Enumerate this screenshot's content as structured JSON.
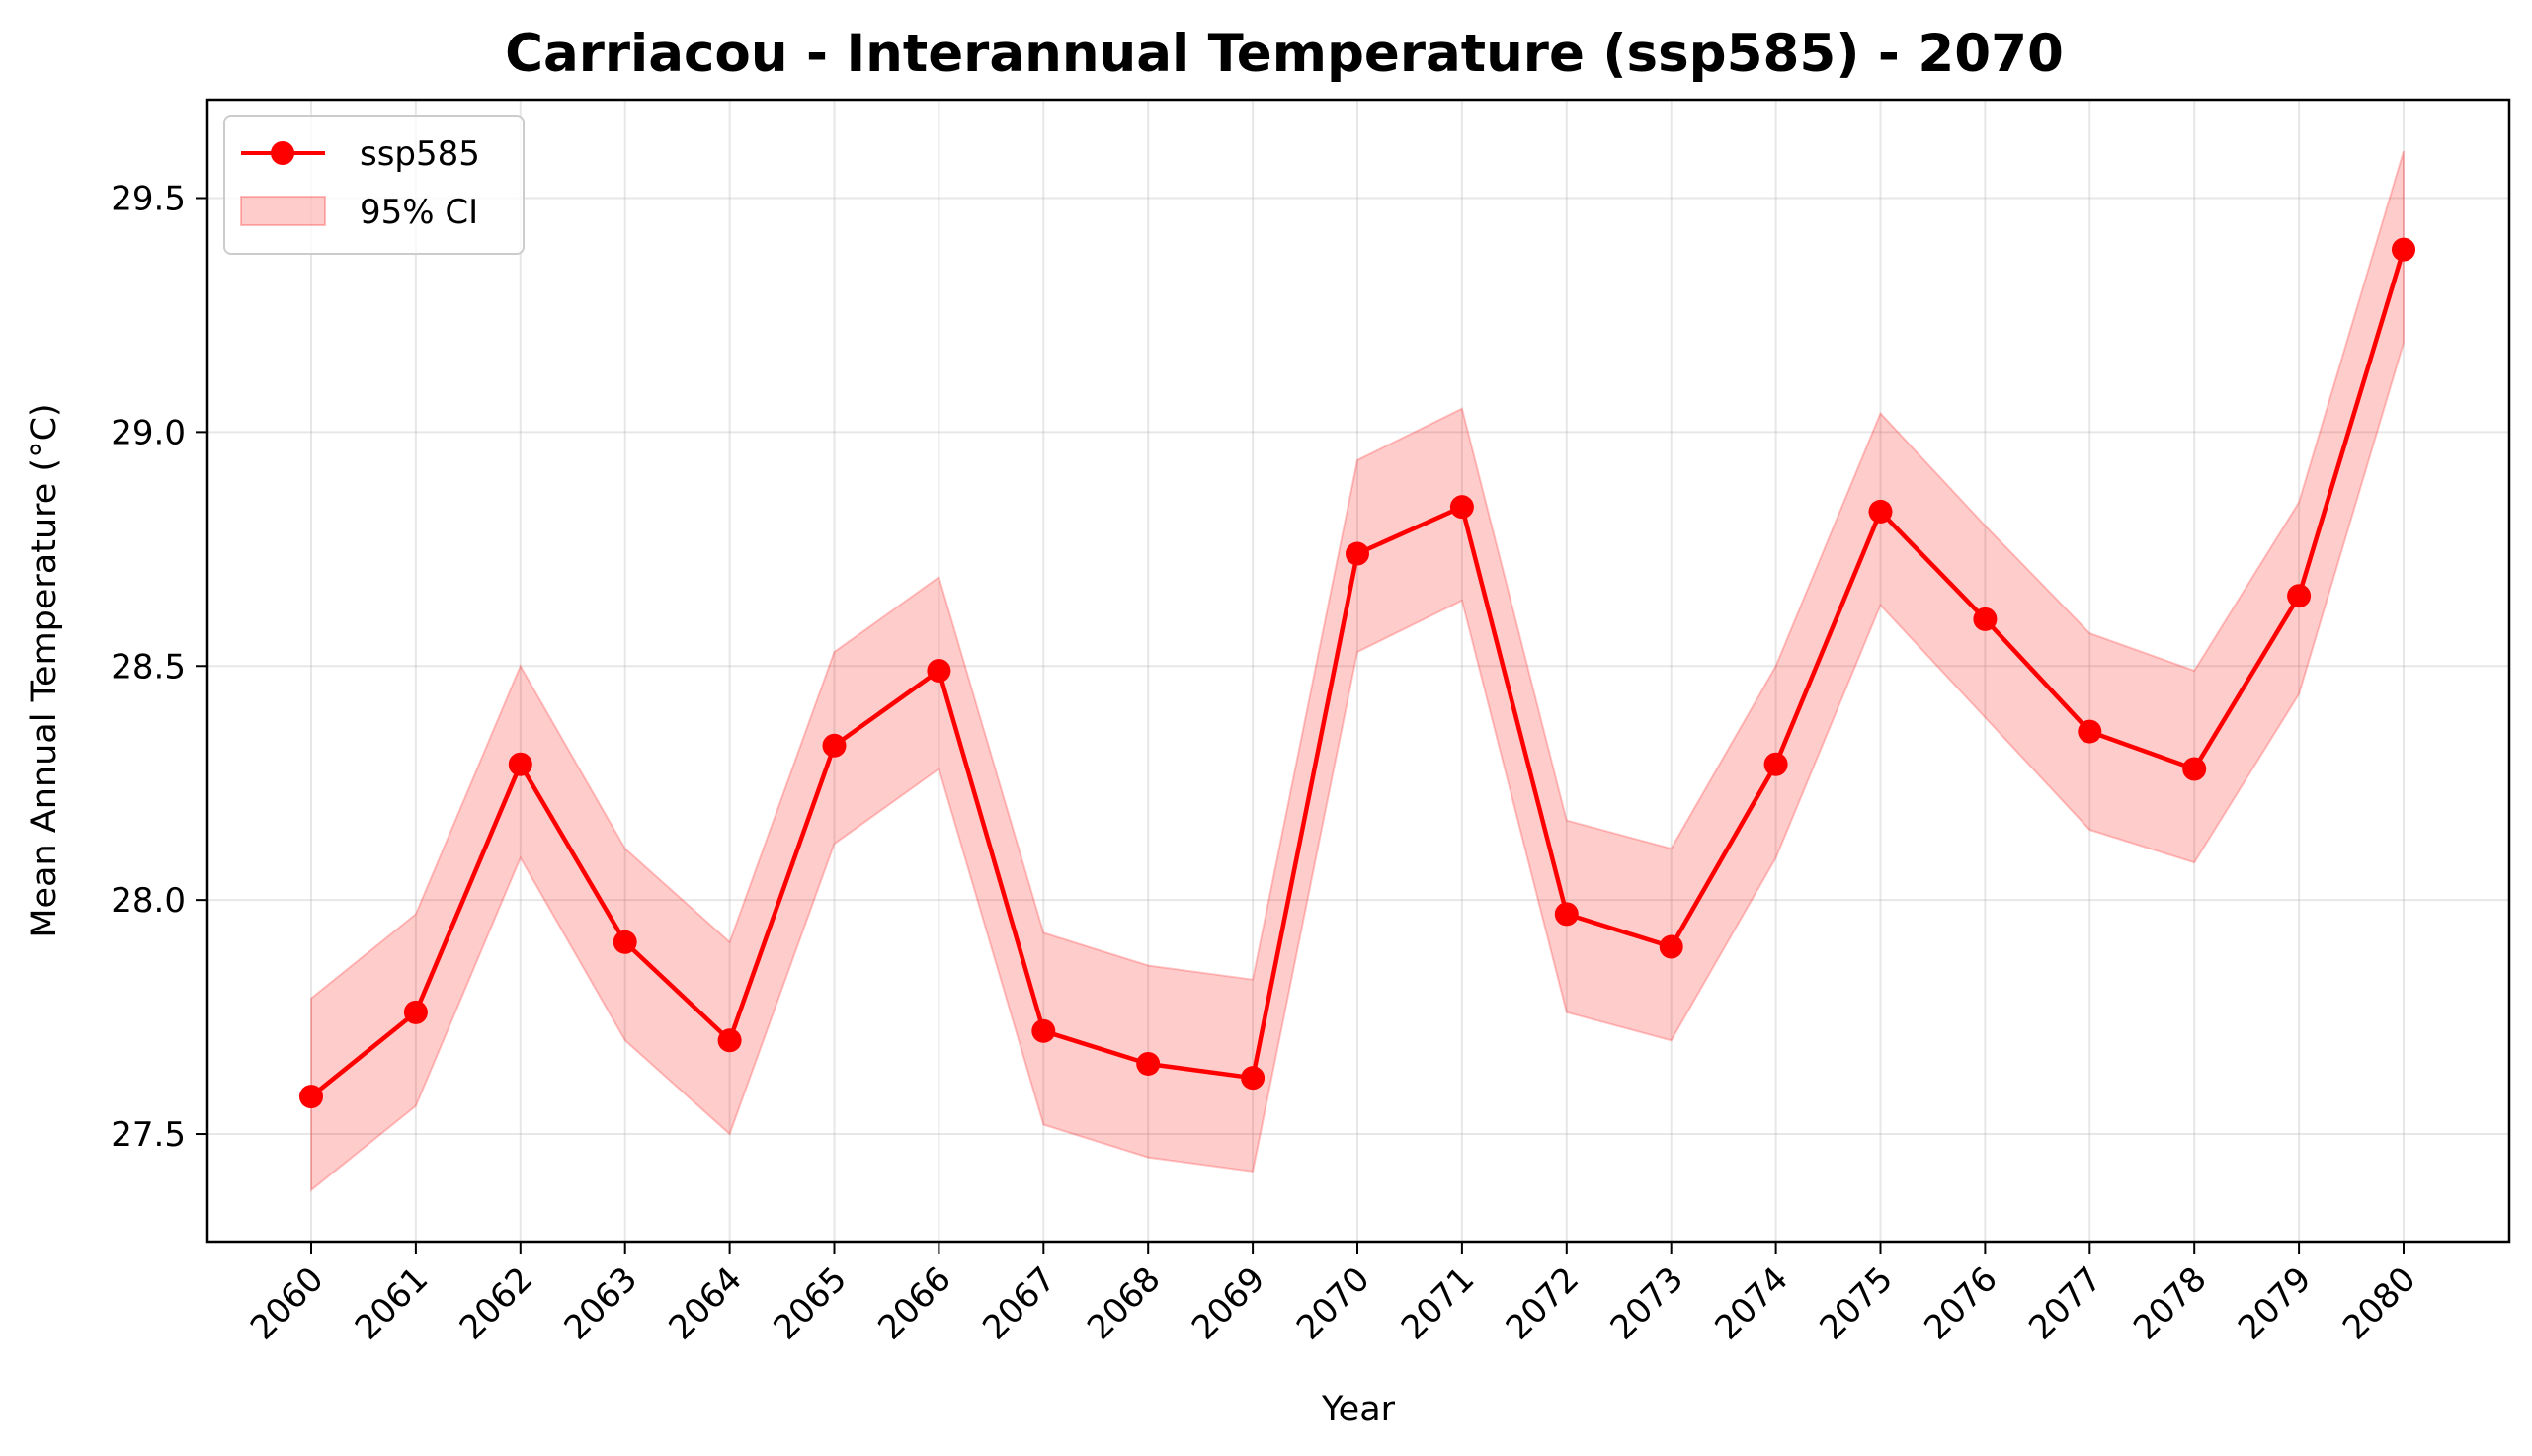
{
  "chart_data": {
    "type": "line",
    "title": "Carriacou - Interannual Temperature (ssp585) - 2070",
    "xlabel": "Year",
    "ylabel": "Mean Annual Temperature (°C)",
    "x": [
      2060,
      2061,
      2062,
      2063,
      2064,
      2065,
      2066,
      2067,
      2068,
      2069,
      2070,
      2071,
      2072,
      2073,
      2074,
      2075,
      2076,
      2077,
      2078,
      2079,
      2080
    ],
    "x_tick_labels": [
      "2060",
      "2061",
      "2062",
      "2063",
      "2064",
      "2065",
      "2066",
      "2067",
      "2068",
      "2069",
      "2070",
      "2071",
      "2072",
      "2073",
      "2074",
      "2075",
      "2076",
      "2077",
      "2078",
      "2079",
      "2080"
    ],
    "ylim": [
      27.27,
      29.71
    ],
    "y_ticks": [
      27.5,
      28.0,
      28.5,
      29.0,
      29.5
    ],
    "y_tick_labels": [
      "27.5",
      "28.0",
      "28.5",
      "29.0",
      "29.5"
    ],
    "grid": true,
    "legend_position": "top-left",
    "series": [
      {
        "name": "ssp585",
        "color": "#ff0000",
        "marker": "circle",
        "values": [
          27.58,
          27.76,
          28.29,
          27.91,
          27.7,
          28.33,
          28.49,
          27.72,
          27.65,
          27.62,
          28.74,
          28.84,
          27.97,
          27.9,
          28.29,
          28.83,
          28.6,
          28.36,
          28.28,
          28.65,
          29.39
        ]
      }
    ],
    "confidence_band": {
      "name": "95% CI",
      "color": "#ff0000",
      "opacity": 0.2,
      "lower": [
        27.38,
        27.56,
        28.09,
        27.7,
        27.5,
        28.12,
        28.28,
        27.52,
        27.45,
        27.42,
        28.53,
        28.64,
        27.76,
        27.7,
        28.09,
        28.63,
        28.39,
        28.15,
        28.08,
        28.44,
        29.19
      ],
      "upper": [
        27.79,
        27.97,
        28.5,
        28.11,
        27.91,
        28.53,
        28.69,
        27.93,
        27.86,
        27.83,
        28.94,
        29.05,
        28.17,
        28.11,
        28.5,
        29.04,
        28.8,
        28.57,
        28.49,
        28.85,
        29.6
      ]
    }
  }
}
